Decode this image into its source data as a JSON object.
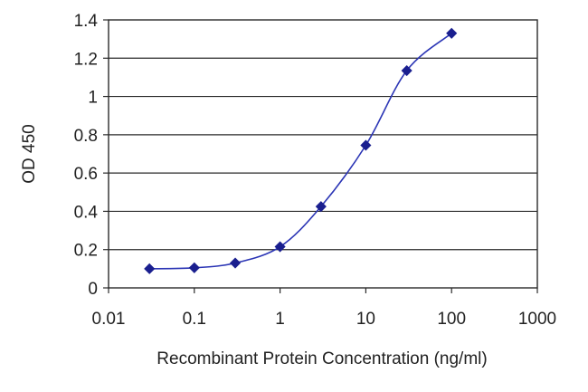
{
  "chart_data": {
    "type": "line",
    "x_scale": "log",
    "xlabel": "Recombinant Protein Concentration (ng/ml)",
    "ylabel": "OD 450",
    "xlim": [
      0.01,
      1000
    ],
    "ylim": [
      0,
      1.4
    ],
    "x_ticks": [
      "0.01",
      "0.1",
      "1",
      "10",
      "100",
      "1000"
    ],
    "y_ticks": [
      "0",
      "0.2",
      "0.4",
      "0.6",
      "0.8",
      "1",
      "1.2",
      "1.4"
    ],
    "grid": "horizontal",
    "series": [
      {
        "x": [
          0.03,
          0.1,
          0.3,
          1,
          3,
          10,
          30,
          100
        ],
        "values": [
          0.1,
          0.105,
          0.13,
          0.215,
          0.425,
          0.745,
          1.135,
          1.33
        ]
      }
    ],
    "colors": {
      "line": "#2b35b5",
      "marker": "#1a1f8f",
      "grid": "#2a2a2a",
      "frame": "#2a2a2a"
    }
  }
}
